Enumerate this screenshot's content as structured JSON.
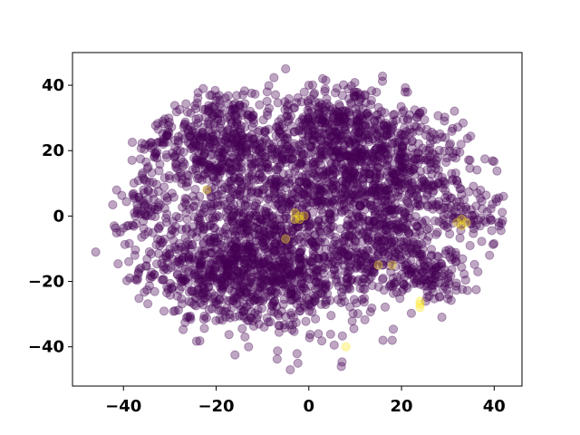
{
  "chart_data": {
    "type": "scatter",
    "title": "",
    "xlabel": "",
    "ylabel": "",
    "xlim": [
      -51,
      46
    ],
    "ylim": [
      -52,
      50
    ],
    "xticks": [
      -40,
      -20,
      0,
      20,
      40
    ],
    "yticks": [
      -40,
      -20,
      0,
      20,
      40
    ],
    "xtick_labels": [
      "−40",
      "−20",
      "0",
      "20",
      "40"
    ],
    "ytick_labels": [
      "−40",
      "−20",
      "0",
      "20",
      "40"
    ],
    "grid": false,
    "legend": "none",
    "point_alpha": 0.35,
    "series": [
      {
        "color": "#440154",
        "clusters": [
          {
            "center": [
              -16,
              -15
            ],
            "spread": [
              10,
              10
            ],
            "count": 900
          },
          {
            "center": [
              -20,
              22
            ],
            "spread": [
              8,
              9
            ],
            "count": 550
          },
          {
            "center": [
              15,
              14
            ],
            "spread": [
              10,
              10
            ],
            "count": 800
          },
          {
            "center": [
              5,
              28
            ],
            "spread": [
              8,
              6
            ],
            "count": 300
          },
          {
            "center": [
              16,
              -8
            ],
            "spread": [
              7,
              7
            ],
            "count": 300
          },
          {
            "center": [
              -5,
              5
            ],
            "spread": [
              8,
              8
            ],
            "count": 300
          },
          {
            "center": [
              0,
              -20
            ],
            "spread": [
              7,
              7
            ],
            "count": 250
          },
          {
            "center": [
              26,
              -18
            ],
            "spread": [
              4,
              4
            ],
            "count": 120
          },
          {
            "center": [
              -35,
              2
            ],
            "spread": [
              3,
              6
            ],
            "count": 70
          },
          {
            "center": [
              36,
              0
            ],
            "spread": [
              3,
              5
            ],
            "count": 60
          }
        ],
        "outliers": [
          [
            -46,
            -11
          ],
          [
            -42,
            -3
          ],
          [
            -5,
            45
          ],
          [
            0,
            40
          ],
          [
            -4,
            -47
          ],
          [
            7,
            -46
          ],
          [
            18,
            -38
          ],
          [
            16,
            -38
          ],
          [
            42,
            6
          ],
          [
            39,
            -12
          ],
          [
            -13,
            -40
          ],
          [
            3,
            42
          ],
          [
            -9,
            38
          ]
        ]
      },
      {
        "color": "#fde725",
        "points": [
          [
            -22,
            8
          ],
          [
            -3,
            1
          ],
          [
            -2,
            0
          ],
          [
            -2,
            -1
          ],
          [
            -1,
            0
          ],
          [
            -3,
            -1
          ],
          [
            -5,
            -7
          ],
          [
            15,
            -15
          ],
          [
            18,
            -15
          ],
          [
            24,
            -26
          ],
          [
            24,
            -27
          ],
          [
            24,
            -28
          ],
          [
            32,
            -2
          ],
          [
            33,
            -3
          ],
          [
            34,
            -2
          ],
          [
            33,
            -1
          ],
          [
            8,
            -40
          ]
        ]
      }
    ]
  }
}
